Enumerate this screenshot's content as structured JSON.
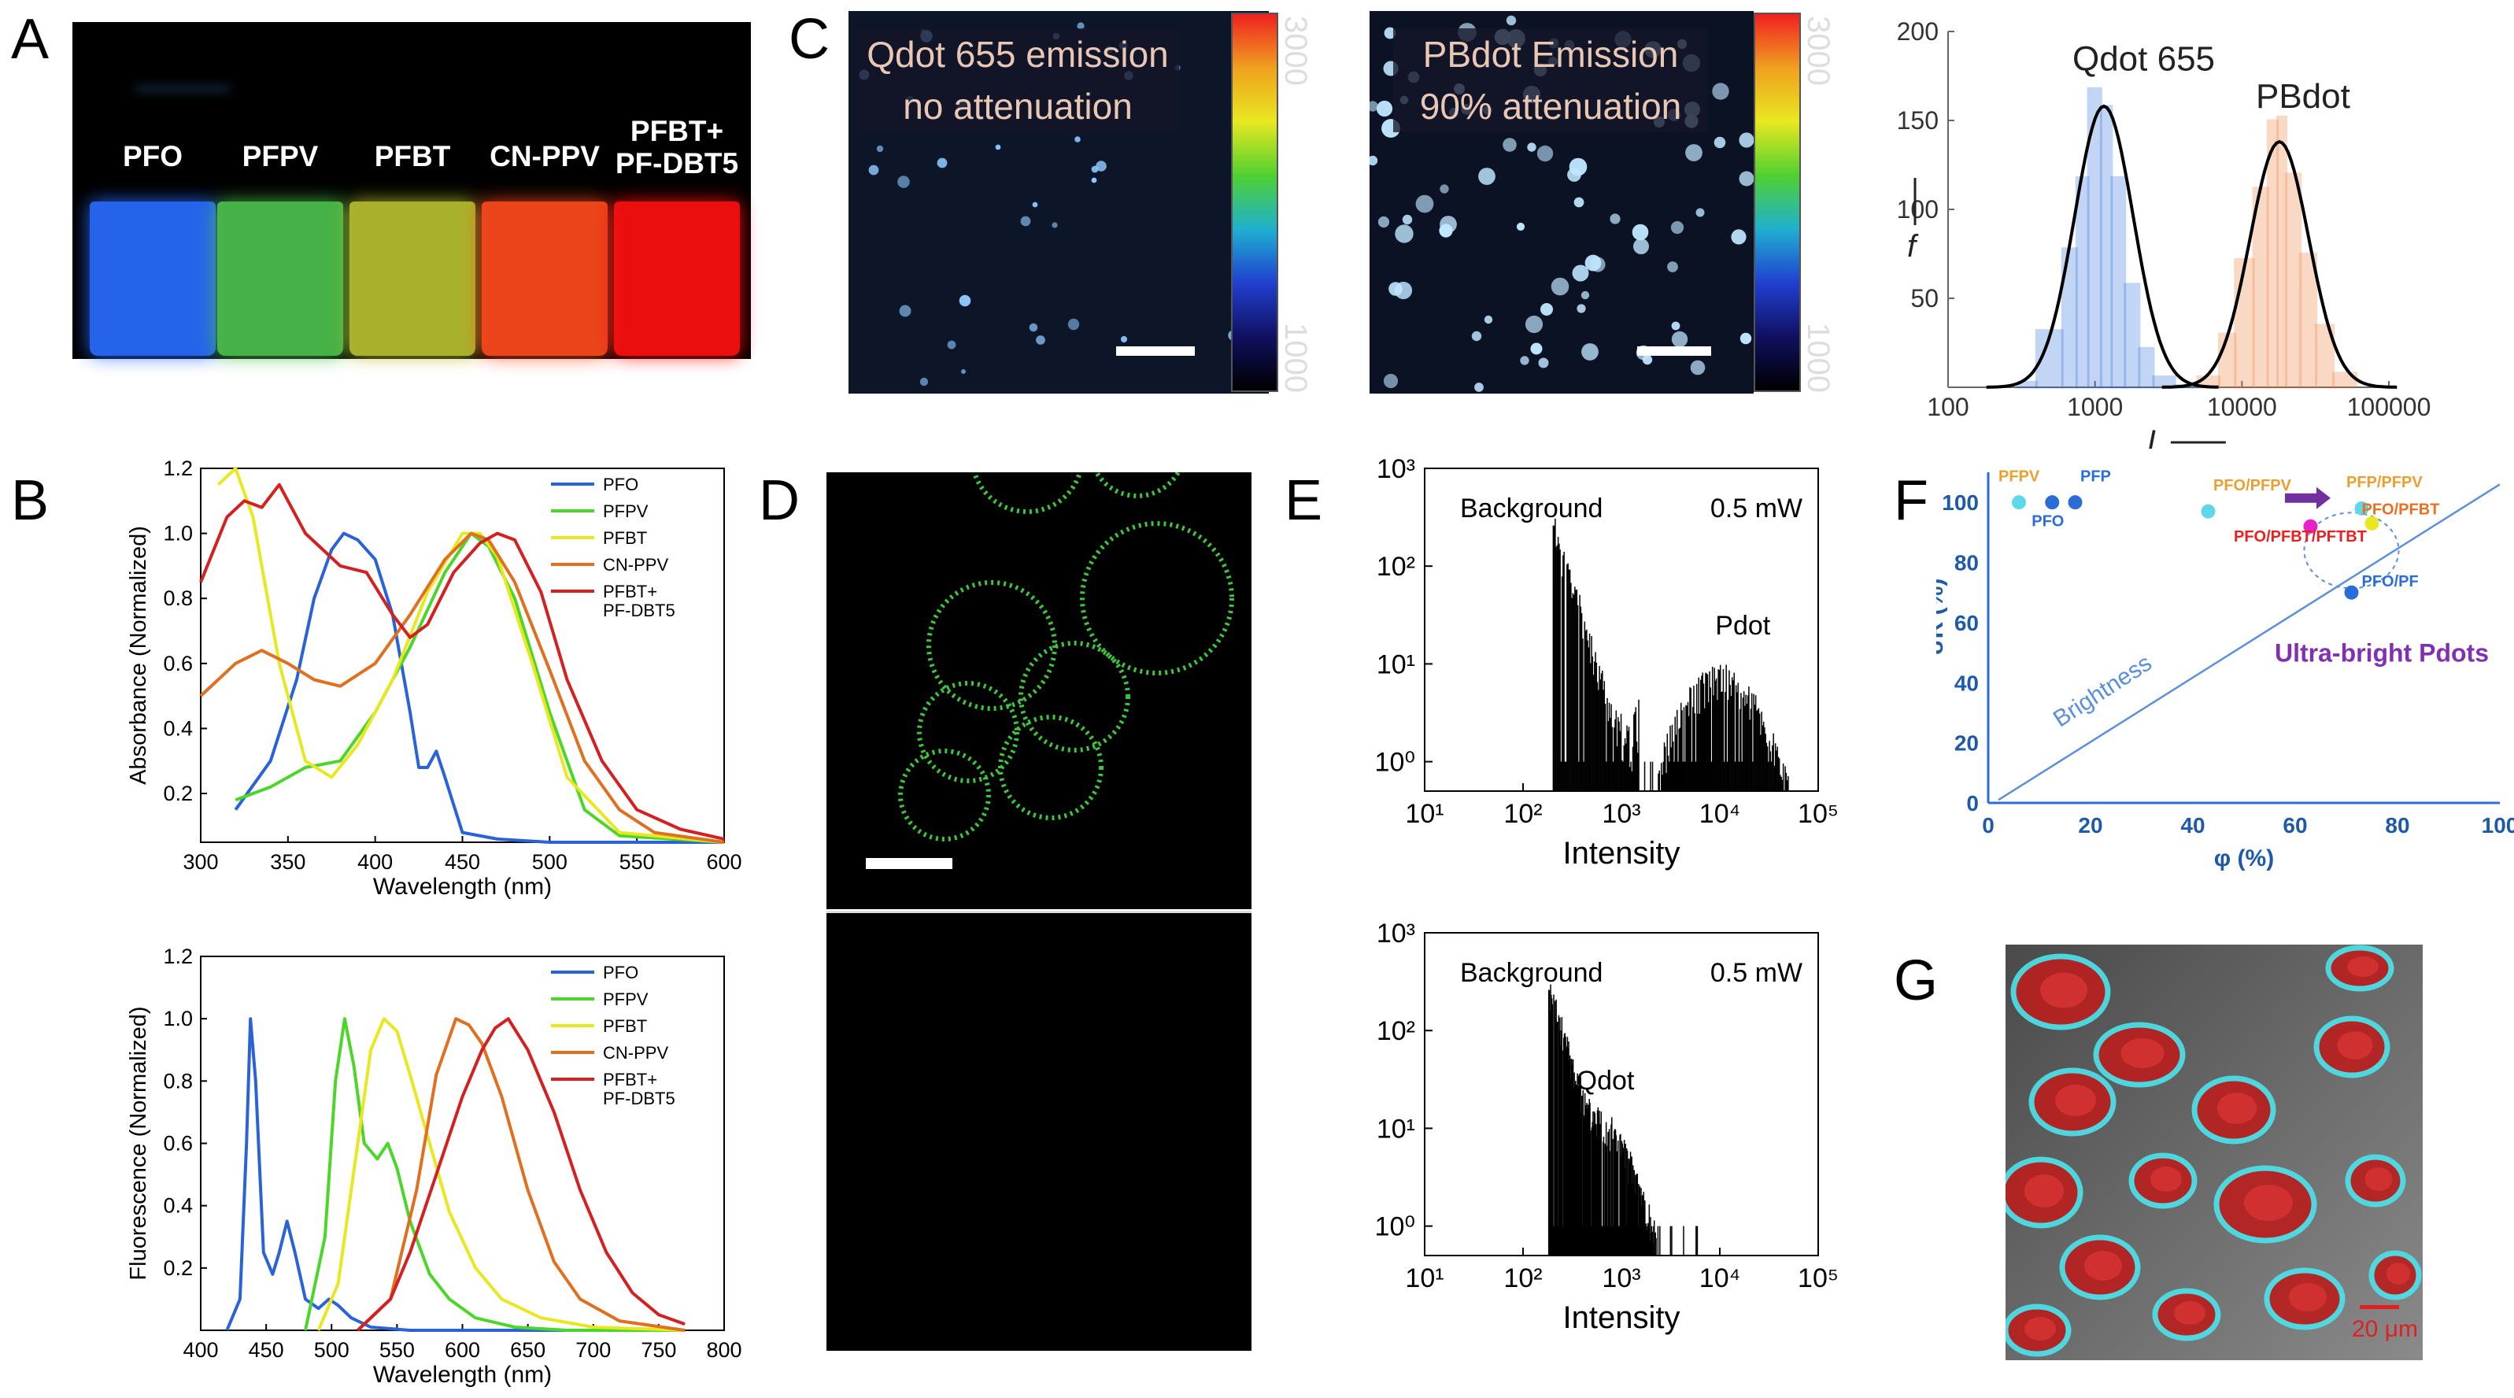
{
  "panel_labels": {
    "A": "A",
    "B": "B",
    "C": "C",
    "D": "D",
    "E": "E",
    "F": "F",
    "G": "G"
  },
  "panelA": {
    "vials": [
      {
        "label": "PFO",
        "color": "#2a6cff"
      },
      {
        "label": "PFPV",
        "color": "#4cc04c"
      },
      {
        "label": "PFBT",
        "color": "#b8c030"
      },
      {
        "label": "CN-PPV",
        "color": "#ff4a1e"
      },
      {
        "label": "PFBT+\nPF-DBT5",
        "color": "#ff1010"
      }
    ]
  },
  "panelC": {
    "image1_line1": "Qdot 655 emission",
    "image1_line2": "no attenuation",
    "image2_line1": "PBdot Emission",
    "image2_line2": "90% attenuation",
    "colorbar_max": "3000",
    "colorbar_min": "1000"
  },
  "panelD": {},
  "panelG": {
    "scale_label": "20 μm"
  },
  "chart_data": [
    {
      "id": "B-absorbance",
      "type": "line",
      "xlabel": "Wavelength (nm)",
      "ylabel": "Absorbance (Normalized)",
      "xlim": [
        300,
        600
      ],
      "ylim": [
        0.05,
        1.2
      ],
      "xticks": [
        300,
        350,
        400,
        450,
        500,
        550,
        600
      ],
      "yticks": [
        0.2,
        0.4,
        0.6,
        0.8,
        1.0,
        1.2
      ],
      "legend": [
        "PFO",
        "PFPV",
        "PFBT",
        "CN-PPV",
        "PFBT+\nPF-DBT5"
      ],
      "series": [
        {
          "name": "PFO",
          "color": "#2a62d8",
          "x": [
            320,
            340,
            355,
            365,
            375,
            382,
            390,
            400,
            410,
            420,
            425,
            430,
            435,
            440,
            450,
            470,
            500,
            600
          ],
          "y": [
            0.15,
            0.3,
            0.55,
            0.8,
            0.95,
            1.0,
            0.98,
            0.92,
            0.75,
            0.45,
            0.28,
            0.28,
            0.33,
            0.25,
            0.08,
            0.06,
            0.05,
            0.05
          ]
        },
        {
          "name": "PFPV",
          "color": "#4cd62a",
          "x": [
            320,
            340,
            360,
            380,
            400,
            420,
            440,
            455,
            465,
            480,
            500,
            520,
            540,
            600
          ],
          "y": [
            0.18,
            0.22,
            0.28,
            0.3,
            0.45,
            0.65,
            0.88,
            1.0,
            0.96,
            0.8,
            0.45,
            0.15,
            0.07,
            0.05
          ]
        },
        {
          "name": "PFBT",
          "color": "#e8e820",
          "x": [
            310,
            320,
            330,
            345,
            360,
            375,
            390,
            410,
            430,
            450,
            460,
            470,
            490,
            510,
            540,
            600
          ],
          "y": [
            1.15,
            1.2,
            1.05,
            0.6,
            0.3,
            0.25,
            0.35,
            0.55,
            0.82,
            1.0,
            1.0,
            0.93,
            0.6,
            0.25,
            0.08,
            0.05
          ]
        },
        {
          "name": "CN-PPV",
          "color": "#e07020",
          "x": [
            300,
            320,
            335,
            350,
            365,
            380,
            400,
            420,
            440,
            455,
            465,
            480,
            500,
            520,
            540,
            560,
            600
          ],
          "y": [
            0.5,
            0.6,
            0.64,
            0.6,
            0.55,
            0.53,
            0.6,
            0.75,
            0.92,
            1.0,
            0.98,
            0.85,
            0.58,
            0.3,
            0.15,
            0.08,
            0.05
          ]
        },
        {
          "name": "PFBT+PF-DBT5",
          "color": "#d42020",
          "x": [
            300,
            315,
            325,
            335,
            345,
            360,
            380,
            395,
            410,
            420,
            430,
            445,
            460,
            470,
            480,
            495,
            510,
            530,
            550,
            575,
            600
          ],
          "y": [
            0.85,
            1.05,
            1.1,
            1.08,
            1.15,
            1.0,
            0.9,
            0.88,
            0.75,
            0.68,
            0.72,
            0.88,
            0.97,
            1.0,
            0.98,
            0.82,
            0.55,
            0.3,
            0.15,
            0.09,
            0.06
          ]
        }
      ]
    },
    {
      "id": "B-fluorescence",
      "type": "line",
      "xlabel": "Wavelength (nm)",
      "ylabel": "Fluorescence (Normalized)",
      "xlim": [
        400,
        800
      ],
      "ylim": [
        0.0,
        1.2
      ],
      "xticks": [
        400,
        450,
        500,
        550,
        600,
        650,
        700,
        750,
        800
      ],
      "yticks": [
        0.2,
        0.4,
        0.6,
        0.8,
        1.0,
        1.2
      ],
      "legend": [
        "PFO",
        "PFPV",
        "PFBT",
        "CN-PPV",
        "PFBT+\nPF-DBT5"
      ],
      "series": [
        {
          "name": "PFO",
          "color": "#2a62d8",
          "x": [
            420,
            430,
            435,
            438,
            442,
            448,
            455,
            460,
            466,
            472,
            480,
            490,
            498,
            505,
            515,
            530,
            560,
            770
          ],
          "y": [
            0.0,
            0.1,
            0.6,
            1.0,
            0.8,
            0.25,
            0.18,
            0.25,
            0.35,
            0.25,
            0.1,
            0.07,
            0.1,
            0.08,
            0.04,
            0.01,
            0.0,
            0.0
          ]
        },
        {
          "name": "PFPV",
          "color": "#4cd62a",
          "x": [
            480,
            495,
            503,
            510,
            517,
            525,
            535,
            543,
            550,
            560,
            575,
            590,
            610,
            640,
            680,
            770
          ],
          "y": [
            0.0,
            0.3,
            0.8,
            1.0,
            0.85,
            0.6,
            0.55,
            0.6,
            0.52,
            0.35,
            0.18,
            0.1,
            0.04,
            0.01,
            0.0,
            0.0
          ]
        },
        {
          "name": "PFBT",
          "color": "#e8e820",
          "x": [
            490,
            505,
            520,
            530,
            540,
            550,
            560,
            575,
            590,
            610,
            630,
            660,
            700,
            770
          ],
          "y": [
            0.0,
            0.15,
            0.6,
            0.9,
            1.0,
            0.96,
            0.82,
            0.6,
            0.38,
            0.2,
            0.1,
            0.04,
            0.01,
            0.0
          ]
        },
        {
          "name": "CN-PPV",
          "color": "#e07020",
          "x": [
            520,
            545,
            565,
            580,
            595,
            605,
            615,
            630,
            650,
            670,
            690,
            720,
            770
          ],
          "y": [
            0.0,
            0.1,
            0.45,
            0.82,
            1.0,
            0.98,
            0.92,
            0.75,
            0.45,
            0.22,
            0.1,
            0.03,
            0.0
          ]
        },
        {
          "name": "PFBT+PF-DBT5",
          "color": "#d42020",
          "x": [
            520,
            545,
            560,
            580,
            600,
            615,
            625,
            635,
            650,
            670,
            690,
            710,
            730,
            750,
            770
          ],
          "y": [
            0.0,
            0.1,
            0.25,
            0.5,
            0.75,
            0.9,
            0.97,
            1.0,
            0.9,
            0.7,
            0.45,
            0.25,
            0.12,
            0.05,
            0.02
          ]
        }
      ]
    },
    {
      "id": "C-histogram",
      "type": "line",
      "xscale": "log",
      "xlim": [
        100,
        100000
      ],
      "ylim": [
        0,
        200
      ],
      "xticks": [
        100,
        1000,
        10000,
        100000
      ],
      "xticklabels": [
        "100",
        "1000",
        "10000",
        "100000"
      ],
      "yticks": [
        50,
        100,
        150,
        200
      ],
      "xlabel": "I",
      "ylabel": "f",
      "annotations": [
        "Qdot 655",
        "PBdot"
      ],
      "series": [
        {
          "name": "Qdot 655 fit",
          "color": "#000",
          "center": 1150,
          "peak": 158,
          "width": 0.2
        },
        {
          "name": "PBdot fit",
          "color": "#000",
          "center": 18000,
          "peak": 138,
          "width": 0.2
        },
        {
          "name": "Qdot 655 histogram",
          "color": "#2a6cd8",
          "bins": [
            [
              300,
              400,
              3
            ],
            [
              400,
              600,
              32
            ],
            [
              600,
              750,
              78
            ],
            [
              750,
              900,
              118
            ],
            [
              900,
              1100,
              168
            ],
            [
              1100,
              1300,
              158
            ],
            [
              1300,
              1600,
              118
            ],
            [
              1600,
              2000,
              58
            ],
            [
              2000,
              2500,
              22
            ],
            [
              2500,
              3500,
              6
            ],
            [
              3500,
              5000,
              1
            ]
          ]
        },
        {
          "name": "PBdot histogram",
          "color": "#f07830",
          "bins": [
            [
              5000,
              7000,
              6
            ],
            [
              7000,
              9000,
              30
            ],
            [
              9000,
              12000,
              72
            ],
            [
              12000,
              15000,
              112
            ],
            [
              15000,
              17500,
              150
            ],
            [
              17500,
              20000,
              152
            ],
            [
              20000,
              25000,
              120
            ],
            [
              25000,
              32000,
              75
            ],
            [
              32000,
              42000,
              35
            ],
            [
              42000,
              60000,
              8
            ]
          ]
        }
      ]
    },
    {
      "id": "E-pdot",
      "type": "bar",
      "xscale": "log",
      "yscale": "log",
      "xlim": [
        10,
        100000
      ],
      "ylim": [
        0.5,
        1000
      ],
      "xticklabels": [
        "10¹",
        "10²",
        "10³",
        "10⁴",
        "10⁵"
      ],
      "yticklabels": [
        "10⁰",
        "10¹",
        "10²",
        "10³"
      ],
      "xlabel": "Intensity",
      "annotations": [
        "Background",
        "0.5 mW",
        "Pdot"
      ],
      "distribution": {
        "spike_at": 200,
        "spike_height": 260,
        "bg_decay_to": 1500,
        "peak_center": 10000,
        "peak_height": 7,
        "cutoff": 50000
      }
    },
    {
      "id": "E-qdot",
      "type": "bar",
      "xscale": "log",
      "yscale": "log",
      "xlim": [
        10,
        100000
      ],
      "ylim": [
        0.5,
        1000
      ],
      "xticklabels": [
        "10¹",
        "10²",
        "10³",
        "10⁴",
        "10⁵"
      ],
      "yticklabels": [
        "10⁰",
        "10¹",
        "10²",
        "10³"
      ],
      "xlabel": "Intensity",
      "annotations": [
        "Background",
        "0.5 mW",
        "Qdot"
      ],
      "distribution": {
        "spike_at": 180,
        "spike_height": 260,
        "peak_center": 400,
        "peak_height": 15,
        "cutoff": 6000
      }
    },
    {
      "id": "F-scatter",
      "type": "scatter",
      "xlabel": "φ (%)",
      "ylabel": "σR (%)",
      "xlim": [
        0,
        100
      ],
      "ylim": [
        0,
        110
      ],
      "xticks": [
        0,
        20,
        40,
        60,
        80,
        100
      ],
      "yticks": [
        0,
        20,
        40,
        60,
        80,
        100
      ],
      "annotations": [
        "Brightness",
        "Ultra-bright Pdots"
      ],
      "points": [
        {
          "label": "PFPV",
          "x": 6,
          "y": 100,
          "color": "#5ed8e8",
          "label_color": "#e8a030"
        },
        {
          "label": "PFO",
          "x": 12.5,
          "y": 100,
          "color": "#2a6cd8",
          "label_color": "#2a6cd8"
        },
        {
          "label": "PFP",
          "x": 17,
          "y": 100,
          "color": "#2a6cd8",
          "label_color": "#2a6cd8"
        },
        {
          "label": "PFO/PFPV",
          "x": 43,
          "y": 97,
          "color": "#5ed8e8",
          "label_color": "#e8a030"
        },
        {
          "label": "PFP/PFPV",
          "x": 73,
          "y": 98,
          "color": "#5ed8e8",
          "label_color": "#e8a030"
        },
        {
          "label": "PFO/PFBT",
          "x": 75,
          "y": 93,
          "color": "#e8e820",
          "label_color": "#e87020"
        },
        {
          "label": "PFO/PFBT/PFTBT",
          "x": 63,
          "y": 92,
          "color": "#e820c8",
          "label_color": "#e82020"
        },
        {
          "label": "PFO/PF",
          "x": 71,
          "y": 70,
          "color": "#2a6cd8",
          "label_color": "#2a6cd8"
        }
      ]
    }
  ]
}
